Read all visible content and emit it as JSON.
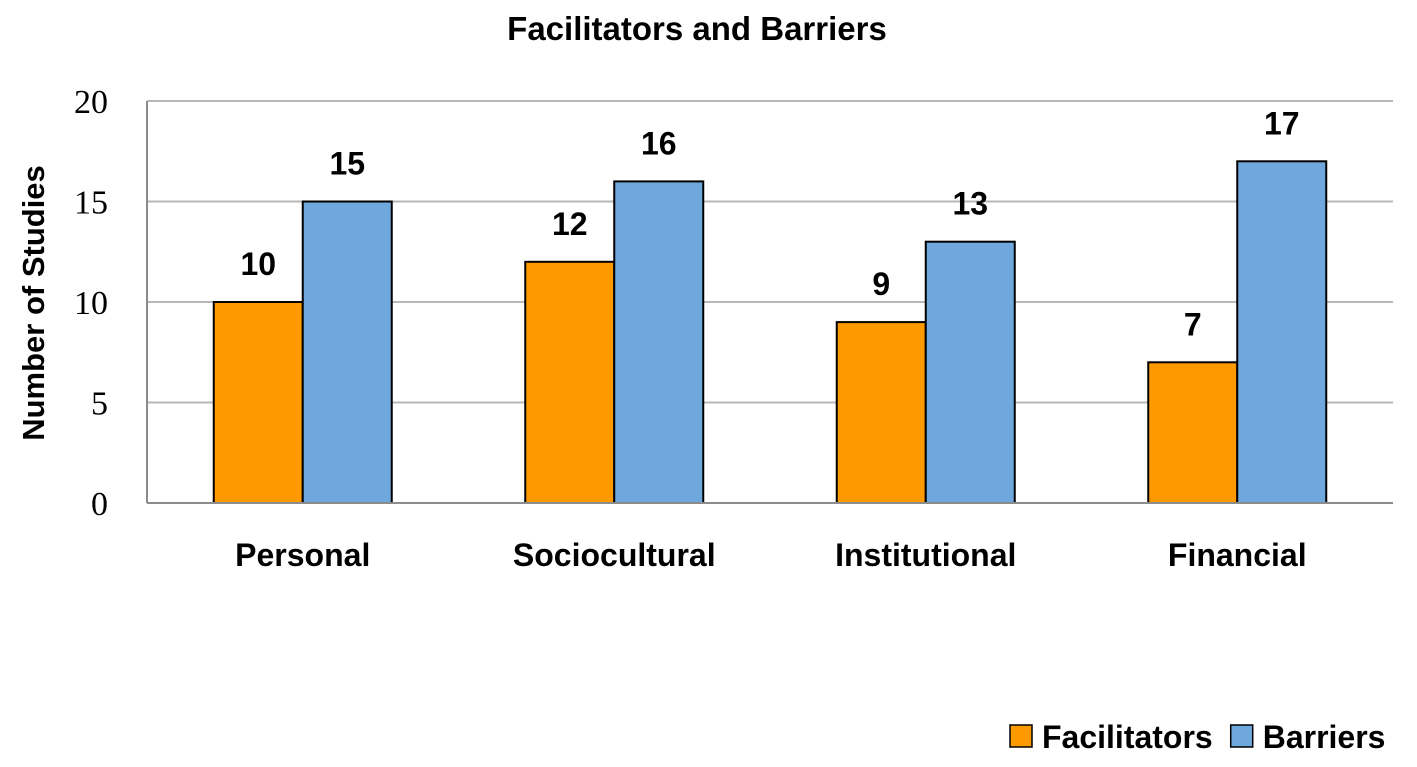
{
  "chart_data": {
    "type": "bar",
    "title": "Facilitators and Barriers",
    "xlabel": "",
    "ylabel": "Number of Studies",
    "categories": [
      "Personal",
      "Sociocultural",
      "Institutional",
      "Financial"
    ],
    "series": [
      {
        "name": "Facilitators",
        "values": [
          10,
          12,
          9,
          7
        ],
        "color": "#FF9900"
      },
      {
        "name": "Barriers",
        "values": [
          15,
          16,
          13,
          17
        ],
        "color": "#6FA8DC"
      }
    ],
    "ylim": [
      0,
      20
    ],
    "yticks": [
      0,
      5,
      10,
      15,
      20
    ],
    "grid": true,
    "legend": "bottom-right",
    "data_labels": true
  }
}
